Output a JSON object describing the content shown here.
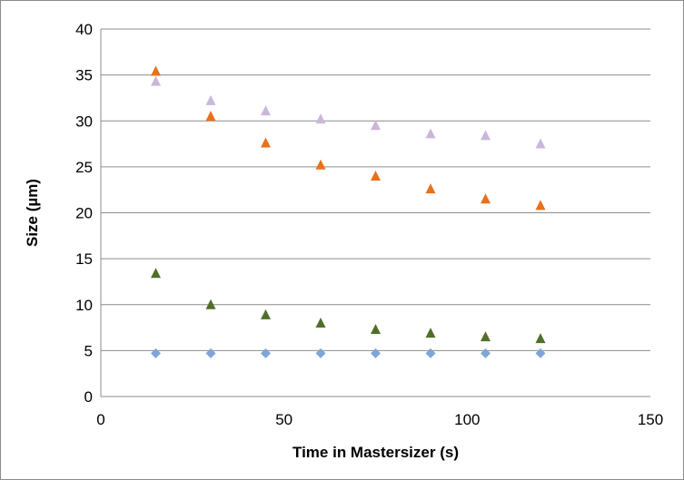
{
  "chart_data": {
    "type": "scatter",
    "title": "",
    "xlabel": "Time in Mastersizer (s)",
    "ylabel": "Size (µm)",
    "xlim": [
      0,
      150
    ],
    "ylim": [
      0,
      40
    ],
    "x_ticks": [
      0,
      50,
      100,
      150
    ],
    "y_ticks": [
      0,
      5,
      10,
      15,
      20,
      25,
      30,
      35,
      40
    ],
    "grid": "horizontal",
    "legend": "none",
    "series": [
      {
        "marker": "diamond",
        "color": "#7FA5D6",
        "points": [
          [
            15,
            4.7
          ],
          [
            30,
            4.7
          ],
          [
            45,
            4.7
          ],
          [
            60,
            4.7
          ],
          [
            75,
            4.7
          ],
          [
            90,
            4.7
          ],
          [
            105,
            4.7
          ],
          [
            120,
            4.7
          ]
        ]
      },
      {
        "marker": "triangle",
        "color": "#4F6F2A",
        "points": [
          [
            15,
            13.4
          ],
          [
            30,
            10.0
          ],
          [
            45,
            8.9
          ],
          [
            60,
            8.0
          ],
          [
            75,
            7.3
          ],
          [
            90,
            6.9
          ],
          [
            105,
            6.5
          ],
          [
            120,
            6.3
          ]
        ]
      },
      {
        "marker": "triangle",
        "color": "#E8711B",
        "points": [
          [
            15,
            35.4
          ],
          [
            30,
            30.5
          ],
          [
            45,
            27.6
          ],
          [
            60,
            25.2
          ],
          [
            75,
            24.0
          ],
          [
            90,
            22.6
          ],
          [
            105,
            21.5
          ],
          [
            120,
            20.8
          ]
        ]
      },
      {
        "marker": "triangle",
        "color": "#C9B8DA",
        "points": [
          [
            15,
            34.3
          ],
          [
            30,
            32.2
          ],
          [
            45,
            31.1
          ],
          [
            60,
            30.2
          ],
          [
            75,
            29.5
          ],
          [
            90,
            28.6
          ],
          [
            105,
            28.4
          ],
          [
            120,
            27.5
          ]
        ]
      }
    ]
  }
}
